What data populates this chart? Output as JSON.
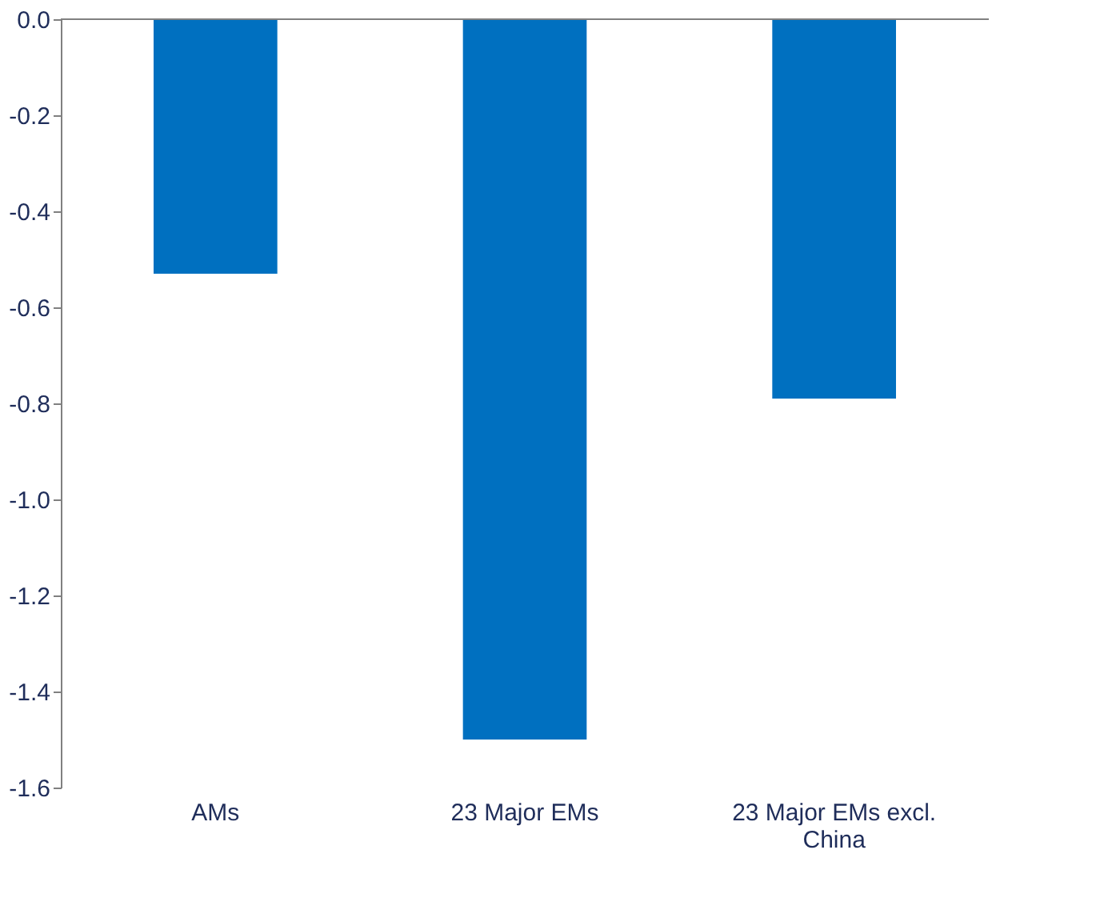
{
  "chart_data": {
    "type": "bar",
    "categories": [
      "AMs",
      "23 Major EMs",
      "23 Major EMs excl. China"
    ],
    "values": [
      -0.53,
      -1.5,
      -0.79
    ],
    "color": "#0070c0",
    "ylim": [
      -1.6,
      0.0
    ],
    "yticks": [
      {
        "value": 0,
        "label": "0.0"
      },
      {
        "value": -0.2,
        "label": "-0.2"
      },
      {
        "value": -0.4,
        "label": "-0.4"
      },
      {
        "value": -0.6,
        "label": "-0.6"
      },
      {
        "value": -0.8,
        "label": "-0.8"
      },
      {
        "value": -1.0,
        "label": "-1.0"
      },
      {
        "value": -1.2,
        "label": "-1.2"
      },
      {
        "value": -1.4,
        "label": "-1.4"
      },
      {
        "value": -1.6,
        "label": "-1.6"
      }
    ],
    "grid": false
  }
}
